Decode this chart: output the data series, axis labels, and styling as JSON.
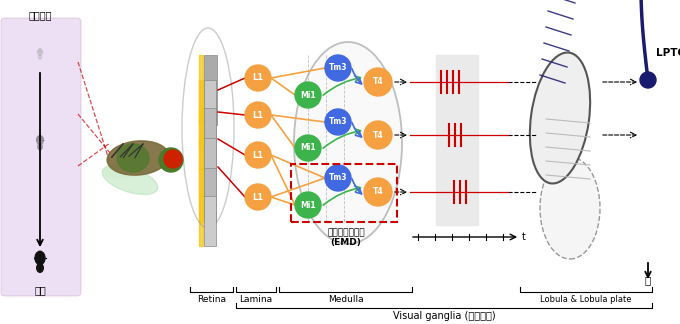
{
  "bg_color": "#ffffff",
  "left_label_top": "수용영역",
  "object_label": "물체",
  "emd_label": "기본동작감지기\n(EMD)",
  "retina_label": "Retina",
  "lamina_label": "Lamina",
  "medulla_label": "Medulla",
  "lobula_label": "Lobula & Lobula plate",
  "visual_ganglia_label": "Visual ganglia (시신경절)",
  "lptcs_label": "LPTCs",
  "brain_label": "뇌",
  "orange": "#f5a142",
  "green": "#3cb44b",
  "blue": "#4169e1",
  "dark_blue": "#1a1a6e",
  "red": "#cc0000",
  "purple_bg": "#d8b8e8",
  "gray1": "#b0b0b0",
  "gray2": "#d0d0d0",
  "gray3": "#e8e8e8",
  "yellow": "#f5c518"
}
